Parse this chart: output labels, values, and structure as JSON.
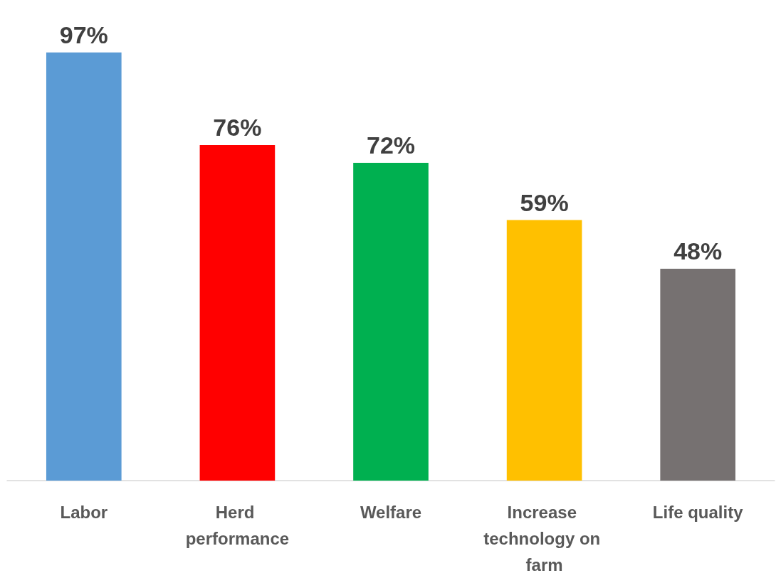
{
  "chart_data": {
    "type": "bar",
    "categories": [
      "Labor",
      "Herd performance",
      "Welfare",
      "Increase technology on farm",
      "Life quality"
    ],
    "values": [
      97,
      76,
      72,
      59,
      48
    ],
    "colors": [
      "#5b9bd5",
      "#ff0000",
      "#00b050",
      "#ffc000",
      "#767171"
    ],
    "value_labels": [
      "97%",
      "76%",
      "72%",
      "59%",
      "48%"
    ],
    "grid": false
  }
}
